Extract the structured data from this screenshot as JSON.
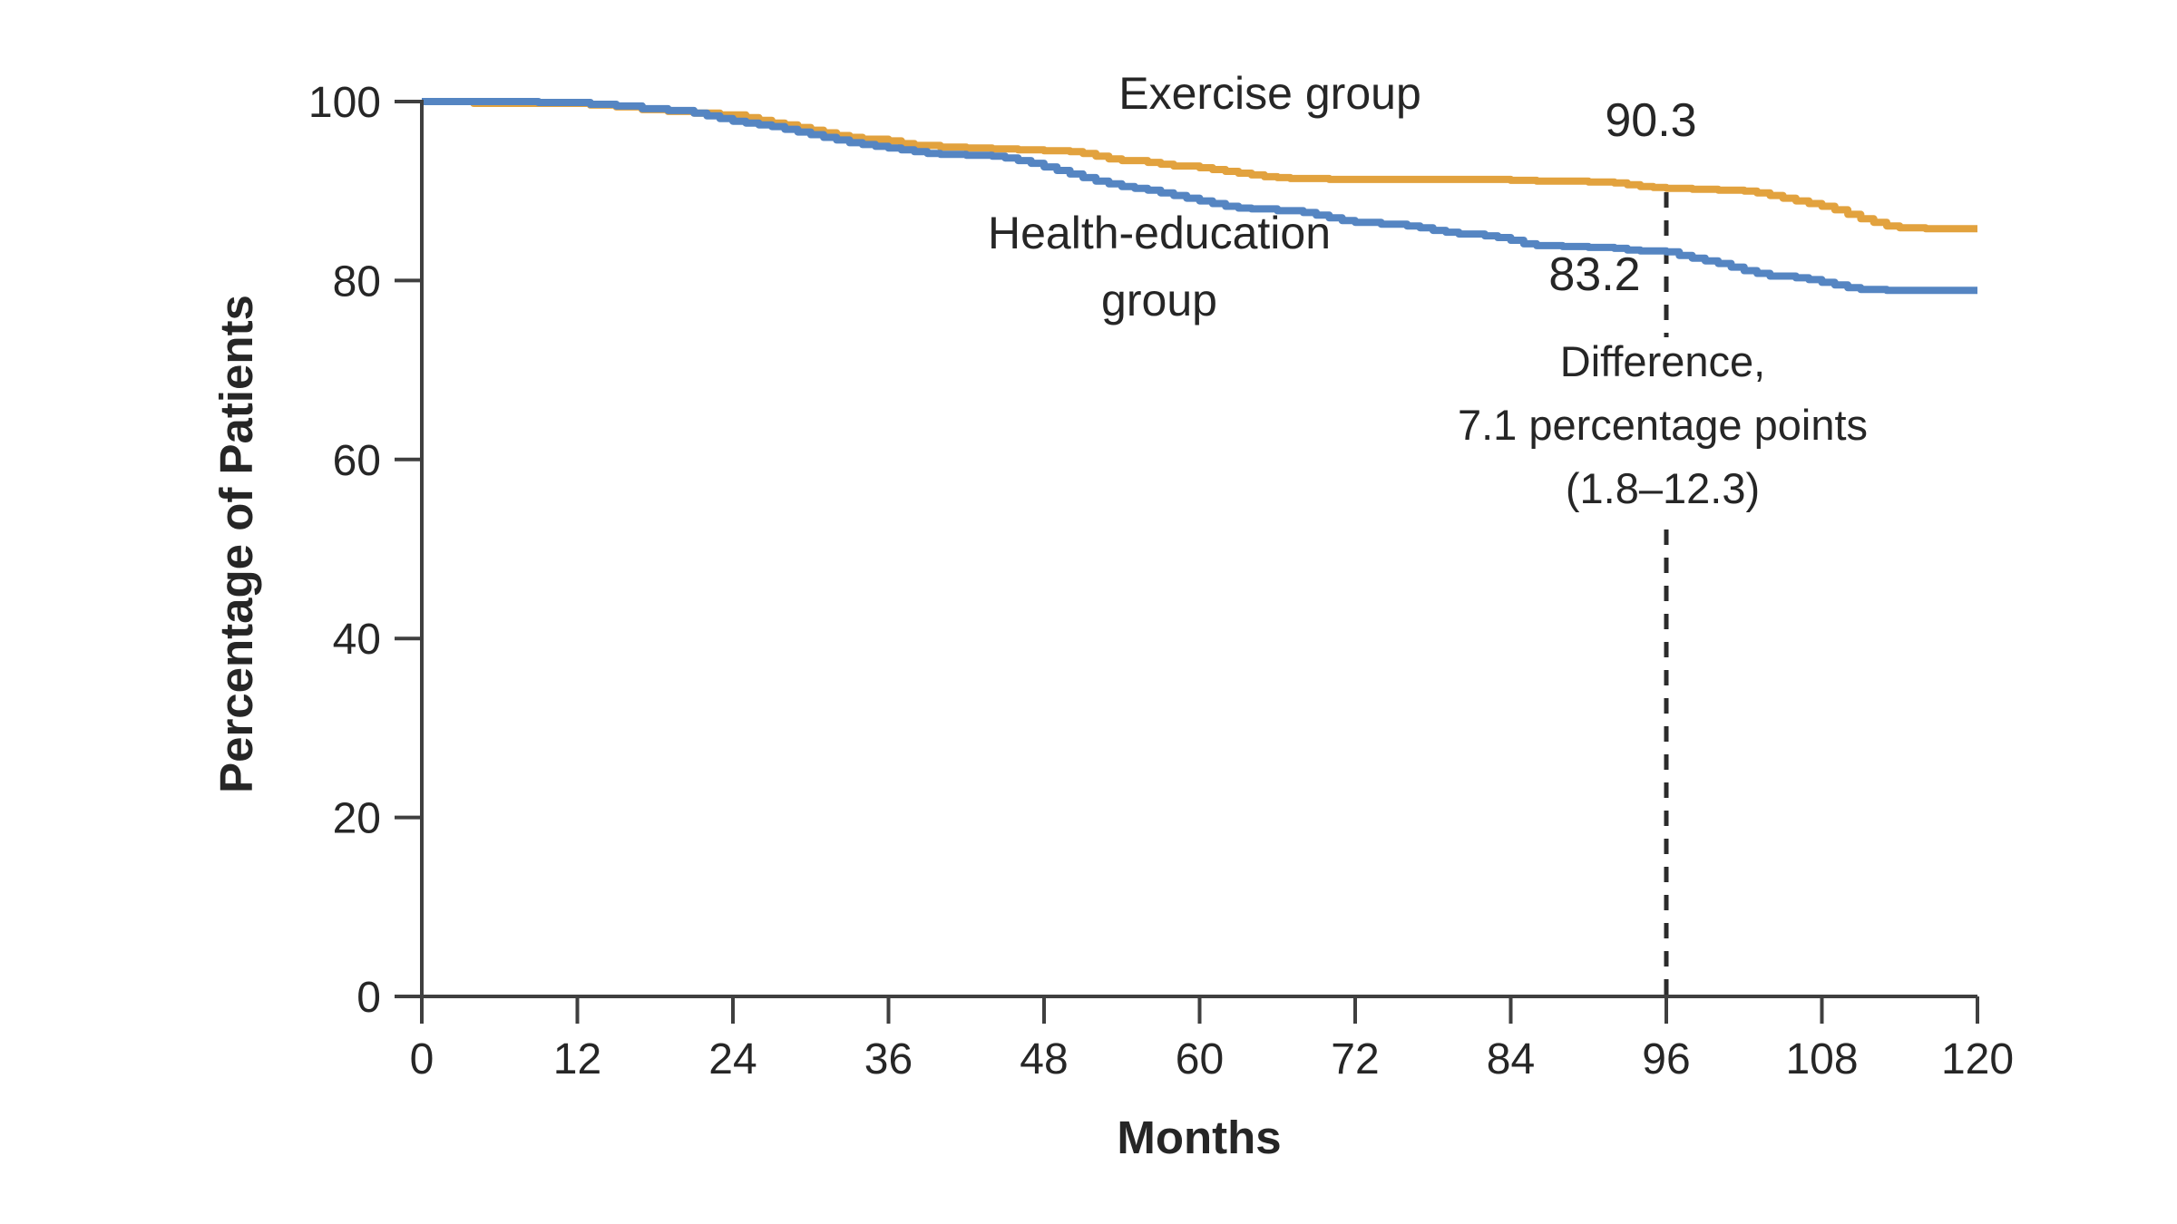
{
  "figure": {
    "y_axis_title": "Percentage of Patients",
    "x_axis_title": "Months",
    "curve_labels": {
      "exercise": "Exercise group",
      "health_line1": "Health-education",
      "health_line2": "group"
    },
    "value_labels": {
      "exercise_at_96": "90.3",
      "health_at_96": "83.2"
    },
    "annotation": {
      "line1": "Difference,",
      "line2": "7.1 percentage points",
      "line3": "(1.8–12.3)"
    },
    "colors": {
      "exercise": "#E2A23E",
      "health": "#5585C2",
      "text": "#262626",
      "axis": "#3F3F3F",
      "dashed_line": "#2B2B2B",
      "background": "#FFFFFF"
    }
  },
  "chart_data": {
    "type": "line",
    "variant": "kaplan-meier-step",
    "title": "",
    "xlabel": "Months",
    "ylabel": "Percentage of Patients",
    "xlim": [
      0,
      120
    ],
    "ylim": [
      0,
      100
    ],
    "x_ticks": [
      0,
      12,
      24,
      36,
      48,
      60,
      72,
      84,
      96,
      108,
      120
    ],
    "y_ticks": [
      0,
      20,
      40,
      60,
      80,
      100
    ],
    "grid": false,
    "legend_position": "inline-labels",
    "annotations": {
      "dashed_vertical_line_x": 96,
      "difference_text": [
        "Difference,",
        "7.1 percentage points",
        "(1.8–12.3)"
      ],
      "difference_value_pp": 7.1,
      "difference_ci": [
        1.8,
        12.3
      ],
      "exercise_value_at_96": 90.3,
      "health_value_at_96": 83.2
    },
    "series": [
      {
        "name": "Exercise group",
        "color": "#E2A23E",
        "points": [
          [
            0,
            100
          ],
          [
            4,
            99.8
          ],
          [
            13,
            99.6
          ],
          [
            15,
            99.4
          ],
          [
            17,
            99.1
          ],
          [
            19,
            98.9
          ],
          [
            21,
            98.7
          ],
          [
            23,
            98.5
          ],
          [
            25,
            98.2
          ],
          [
            26,
            97.9
          ],
          [
            27,
            97.6
          ],
          [
            28,
            97.4
          ],
          [
            29,
            97.1
          ],
          [
            30,
            96.8
          ],
          [
            31,
            96.5
          ],
          [
            32,
            96.2
          ],
          [
            33,
            96.0
          ],
          [
            34,
            95.8
          ],
          [
            36,
            95.6
          ],
          [
            37,
            95.3
          ],
          [
            38,
            95.1
          ],
          [
            40,
            94.9
          ],
          [
            42,
            94.8
          ],
          [
            44,
            94.7
          ],
          [
            46,
            94.6
          ],
          [
            48,
            94.5
          ],
          [
            50,
            94.4
          ],
          [
            51,
            94.2
          ],
          [
            52,
            93.9
          ],
          [
            53,
            93.6
          ],
          [
            54,
            93.4
          ],
          [
            56,
            93.2
          ],
          [
            57,
            93.0
          ],
          [
            58,
            92.8
          ],
          [
            60,
            92.6
          ],
          [
            61,
            92.4
          ],
          [
            62,
            92.2
          ],
          [
            63,
            92.0
          ],
          [
            64,
            91.8
          ],
          [
            65,
            91.6
          ],
          [
            66,
            91.5
          ],
          [
            67,
            91.4
          ],
          [
            70,
            91.3
          ],
          [
            84,
            91.2
          ],
          [
            86,
            91.1
          ],
          [
            90,
            91.0
          ],
          [
            92,
            90.9
          ],
          [
            93,
            90.7
          ],
          [
            94,
            90.5
          ],
          [
            95,
            90.4
          ],
          [
            96,
            90.3
          ],
          [
            98,
            90.2
          ],
          [
            100,
            90.1
          ],
          [
            102,
            90.0
          ],
          [
            103,
            89.8
          ],
          [
            104,
            89.5
          ],
          [
            105,
            89.2
          ],
          [
            106,
            88.9
          ],
          [
            107,
            88.6
          ],
          [
            108,
            88.3
          ],
          [
            109,
            87.9
          ],
          [
            110,
            87.4
          ],
          [
            111,
            86.9
          ],
          [
            112,
            86.5
          ],
          [
            113,
            86.1
          ],
          [
            114,
            85.9
          ],
          [
            116,
            85.8
          ],
          [
            120,
            85.8
          ]
        ]
      },
      {
        "name": "Health-education group",
        "color": "#5585C2",
        "points": [
          [
            0,
            100
          ],
          [
            9,
            99.9
          ],
          [
            13,
            99.7
          ],
          [
            15,
            99.5
          ],
          [
            17,
            99.2
          ],
          [
            19,
            99.0
          ],
          [
            21,
            98.7
          ],
          [
            22,
            98.4
          ],
          [
            23,
            98.1
          ],
          [
            24,
            97.8
          ],
          [
            25,
            97.6
          ],
          [
            26,
            97.4
          ],
          [
            27,
            97.2
          ],
          [
            28,
            96.9
          ],
          [
            29,
            96.6
          ],
          [
            30,
            96.3
          ],
          [
            31,
            96.0
          ],
          [
            32,
            95.7
          ],
          [
            33,
            95.4
          ],
          [
            34,
            95.2
          ],
          [
            35,
            95.0
          ],
          [
            36,
            94.8
          ],
          [
            37,
            94.6
          ],
          [
            38,
            94.4
          ],
          [
            39,
            94.2
          ],
          [
            40,
            94.1
          ],
          [
            42,
            94.0
          ],
          [
            44,
            93.9
          ],
          [
            45,
            93.7
          ],
          [
            46,
            93.4
          ],
          [
            47,
            93.1
          ],
          [
            48,
            92.7
          ],
          [
            49,
            92.3
          ],
          [
            50,
            91.9
          ],
          [
            51,
            91.5
          ],
          [
            52,
            91.1
          ],
          [
            53,
            90.8
          ],
          [
            54,
            90.5
          ],
          [
            55,
            90.3
          ],
          [
            56,
            90.1
          ],
          [
            57,
            89.8
          ],
          [
            58,
            89.5
          ],
          [
            59,
            89.2
          ],
          [
            60,
            88.9
          ],
          [
            61,
            88.6
          ],
          [
            62,
            88.3
          ],
          [
            63,
            88.1
          ],
          [
            64,
            88.0
          ],
          [
            66,
            87.8
          ],
          [
            68,
            87.6
          ],
          [
            69,
            87.3
          ],
          [
            70,
            87.0
          ],
          [
            71,
            86.7
          ],
          [
            72,
            86.5
          ],
          [
            74,
            86.3
          ],
          [
            76,
            86.1
          ],
          [
            77,
            85.9
          ],
          [
            78,
            85.6
          ],
          [
            79,
            85.4
          ],
          [
            80,
            85.2
          ],
          [
            82,
            85.0
          ],
          [
            83,
            84.8
          ],
          [
            84,
            84.5
          ],
          [
            85,
            84.1
          ],
          [
            86,
            83.9
          ],
          [
            88,
            83.8
          ],
          [
            90,
            83.7
          ],
          [
            92,
            83.6
          ],
          [
            93,
            83.4
          ],
          [
            94,
            83.3
          ],
          [
            96,
            83.2
          ],
          [
            97,
            82.8
          ],
          [
            98,
            82.5
          ],
          [
            99,
            82.2
          ],
          [
            100,
            81.9
          ],
          [
            101,
            81.5
          ],
          [
            102,
            81.1
          ],
          [
            103,
            80.8
          ],
          [
            104,
            80.5
          ],
          [
            106,
            80.3
          ],
          [
            107,
            80.1
          ],
          [
            108,
            79.8
          ],
          [
            109,
            79.5
          ],
          [
            110,
            79.2
          ],
          [
            111,
            79.0
          ],
          [
            113,
            78.9
          ],
          [
            120,
            78.9
          ]
        ]
      }
    ]
  }
}
